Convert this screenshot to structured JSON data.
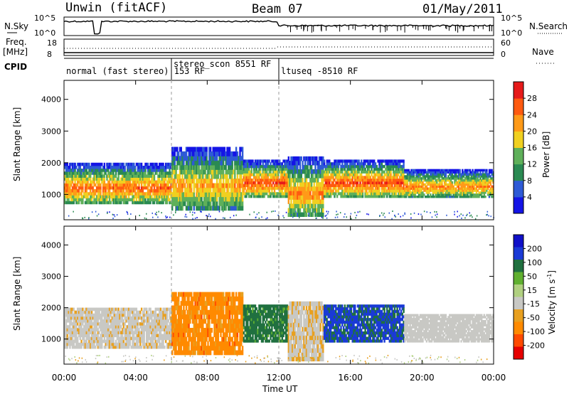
{
  "header": {
    "station": "Unwin (fitACF)",
    "beam": "Beam 07",
    "date": "01/May/2011"
  },
  "aux_panels": {
    "nsky_label": "N.Sky",
    "nsky_ticks": [
      "10^5",
      "10^0"
    ],
    "nsearch_label": "N.Search",
    "nsearch_ticks": [
      "10^5",
      "10^0"
    ],
    "freq_label": "Freq.",
    "freq_unit": "[MHz]",
    "freq_ticks": [
      "18",
      "8"
    ],
    "nave_label": "Nave",
    "nave_ticks": [
      "60",
      "0"
    ],
    "cpid_label": "CPID",
    "cpid_segments": [
      {
        "text": "normal (fast stereo) 153 RF",
        "start_hour": 0
      },
      {
        "text": "stereo_scon 8551 RF",
        "start_hour": 6
      },
      {
        "text": "ltuseq -8510 RF",
        "start_hour": 12
      }
    ]
  },
  "time_axis": {
    "label": "Time UT",
    "ticks": [
      "00:00",
      "04:00",
      "08:00",
      "12:00",
      "16:00",
      "20:00",
      "00:00"
    ]
  },
  "colors": {
    "power_scale": [
      "#1414e6",
      "#2e5ad6",
      "#2a8a52",
      "#5fb05a",
      "#f0d020",
      "#ff9a18",
      "#ff5a10",
      "#e61a1a"
    ],
    "velocity_scale": [
      "#e60000",
      "#ff4a00",
      "#ff8a00",
      "#e8a020",
      "#c8c8c4",
      "#b0d080",
      "#60b030",
      "#207040",
      "#1a3ad6",
      "#1010c8"
    ]
  },
  "chart_data": [
    {
      "type": "heatmap",
      "title": "",
      "ylabel": "Slant Range [km]",
      "xlabel": "",
      "ylim": [
        200,
        4600
      ],
      "xlim_hours": [
        0,
        24
      ],
      "y_ticks": [
        1000,
        2000,
        3000,
        4000
      ],
      "colorbar": {
        "label": "Power [dB]",
        "ticks": [
          4,
          8,
          12,
          16,
          20,
          24,
          28
        ],
        "range": [
          0,
          32
        ]
      },
      "scatter_bands": [
        {
          "start_hour": 0,
          "end_hour": 6,
          "range_low_km": 700,
          "range_high_km": 2000,
          "peak_power_db": 26
        },
        {
          "start_hour": 6,
          "end_hour": 10,
          "range_low_km": 500,
          "range_high_km": 2500,
          "peak_power_db": 22
        },
        {
          "start_hour": 10,
          "end_hour": 12.5,
          "range_low_km": 900,
          "range_high_km": 2100,
          "peak_power_db": 28
        },
        {
          "start_hour": 12.5,
          "end_hour": 14.5,
          "range_low_km": 300,
          "range_high_km": 2200,
          "peak_power_db": 24
        },
        {
          "start_hour": 14.5,
          "end_hour": 19,
          "range_low_km": 900,
          "range_high_km": 2100,
          "peak_power_db": 28
        },
        {
          "start_hour": 19,
          "end_hour": 24,
          "range_low_km": 900,
          "range_high_km": 1800,
          "peak_power_db": 24
        }
      ],
      "mode_change_hours": [
        6,
        12
      ]
    },
    {
      "type": "heatmap",
      "title": "",
      "ylabel": "Slant Range [km]",
      "xlabel": "Time UT",
      "ylim": [
        200,
        4600
      ],
      "xlim_hours": [
        0,
        24
      ],
      "y_ticks": [
        1000,
        2000,
        3000,
        4000
      ],
      "colorbar": {
        "label": "Velocity [m s^-1]",
        "ticks": [
          200,
          100,
          50,
          15,
          -15,
          -50,
          -100,
          -200
        ]
      },
      "scatter_bands": [
        {
          "start_hour": 0,
          "end_hour": 6,
          "range_low_km": 700,
          "range_high_km": 2000,
          "velocity_ms": -5
        },
        {
          "start_hour": 6,
          "end_hour": 10,
          "range_low_km": 500,
          "range_high_km": 2500,
          "velocity_ms": -80
        },
        {
          "start_hour": 10,
          "end_hour": 12.5,
          "range_low_km": 900,
          "range_high_km": 2100,
          "velocity_ms": 150
        },
        {
          "start_hour": 12.5,
          "end_hour": 14.5,
          "range_low_km": 300,
          "range_high_km": 2200,
          "velocity_ms": -10
        },
        {
          "start_hour": 14.5,
          "end_hour": 19,
          "range_low_km": 900,
          "range_high_km": 2100,
          "velocity_ms": 250
        },
        {
          "start_hour": 19,
          "end_hour": 24,
          "range_low_km": 900,
          "range_high_km": 1800,
          "velocity_ms": 0
        }
      ],
      "mode_change_hours": [
        6,
        12
      ]
    }
  ]
}
